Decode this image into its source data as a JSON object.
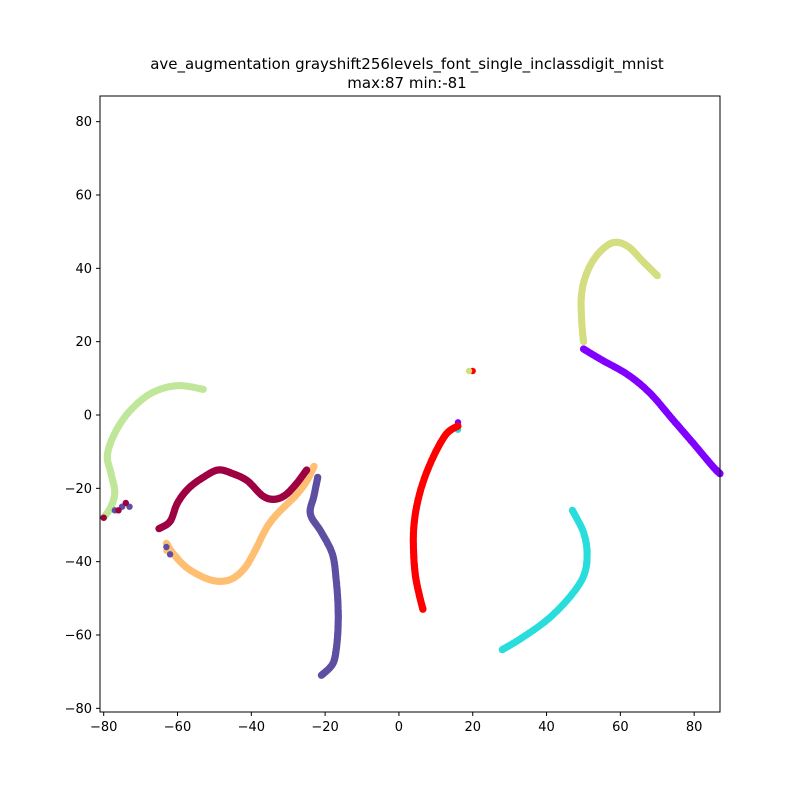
{
  "chart_data": {
    "type": "scatter",
    "title": "ave_augmentation grayshift256levels_font_single_inclassdigit_mnist",
    "subtitle": "max:87 min:-81",
    "xlabel": "",
    "ylabel": "",
    "xlim": [
      -81,
      87
    ],
    "ylim": [
      -81,
      87
    ],
    "xticks": [
      -80,
      -60,
      -40,
      -20,
      0,
      20,
      40,
      60,
      80
    ],
    "yticks": [
      -80,
      -60,
      -40,
      -20,
      0,
      20,
      40,
      60,
      80
    ],
    "grid": false,
    "legend": "none",
    "series": [
      {
        "color": "#8000ff",
        "points": [
          [
            50,
            18
          ],
          [
            55,
            15
          ],
          [
            62,
            11
          ],
          [
            68,
            6
          ],
          [
            74,
            -1
          ],
          [
            80,
            -8
          ],
          [
            85,
            -14
          ],
          [
            87,
            -16
          ]
        ],
        "extra": [
          [
            16,
            -2
          ]
        ]
      },
      {
        "color": "#2adddd",
        "points": [
          [
            28,
            -64
          ],
          [
            33,
            -61
          ],
          [
            40,
            -56
          ],
          [
            46,
            -50
          ],
          [
            50,
            -44
          ],
          [
            51,
            -38
          ],
          [
            50,
            -32
          ],
          [
            47,
            -26
          ]
        ],
        "extra": [
          [
            16,
            -4
          ]
        ]
      },
      {
        "color": "#ff0000",
        "points": [
          [
            16,
            -3
          ],
          [
            13,
            -5
          ],
          [
            10,
            -10
          ],
          [
            7,
            -17
          ],
          [
            5,
            -24
          ],
          [
            4,
            -31
          ],
          [
            4,
            -38
          ],
          [
            4.5,
            -44
          ],
          [
            5.5,
            -49
          ],
          [
            6.5,
            -53
          ]
        ],
        "extra": [
          [
            20,
            12
          ]
        ]
      },
      {
        "color": "#d4dd80",
        "points": [
          [
            50,
            20
          ],
          [
            49.5,
            26
          ],
          [
            49.5,
            33
          ],
          [
            51,
            39
          ],
          [
            54,
            44
          ],
          [
            58,
            47
          ],
          [
            62,
            46
          ],
          [
            66,
            42
          ],
          [
            70,
            38
          ]
        ],
        "extra": [
          [
            19,
            12
          ]
        ]
      },
      {
        "color": "#c0e699",
        "points": [
          [
            -53,
            7
          ],
          [
            -60,
            8
          ],
          [
            -67,
            6
          ],
          [
            -73,
            1
          ],
          [
            -77,
            -5
          ],
          [
            -79,
            -11
          ],
          [
            -78,
            -16
          ],
          [
            -77,
            -21
          ],
          [
            -78,
            -25
          ],
          [
            -80,
            -28
          ]
        ],
        "extra": []
      },
      {
        "color": "#ffbf73",
        "points": [
          [
            -63,
            -35
          ],
          [
            -61,
            -38
          ],
          [
            -57,
            -42
          ],
          [
            -51,
            -45
          ],
          [
            -46,
            -45
          ],
          [
            -42,
            -42
          ],
          [
            -39,
            -37
          ],
          [
            -36,
            -31
          ],
          [
            -33,
            -27
          ],
          [
            -28,
            -22
          ],
          [
            -25,
            -18
          ],
          [
            -23,
            -14
          ]
        ],
        "extra": [
          [
            -63,
            -37
          ],
          [
            -62,
            -38
          ]
        ]
      },
      {
        "color": "#5e4fa2",
        "points": [
          [
            -22,
            -17
          ],
          [
            -23,
            -22
          ],
          [
            -24,
            -27
          ],
          [
            -21,
            -32
          ],
          [
            -18,
            -38
          ],
          [
            -17,
            -45
          ],
          [
            -16.5,
            -52
          ],
          [
            -16.5,
            -58
          ],
          [
            -17,
            -64
          ],
          [
            -18,
            -68
          ],
          [
            -21,
            -71
          ]
        ],
        "extra": [
          [
            -75,
            -25
          ],
          [
            -73,
            -25
          ],
          [
            -77,
            -26
          ],
          [
            -63,
            -36
          ],
          [
            -62,
            -38
          ]
        ]
      },
      {
        "color": "#9e0142",
        "points": [
          [
            -65,
            -31
          ],
          [
            -62,
            -29
          ],
          [
            -60,
            -24
          ],
          [
            -57,
            -20
          ],
          [
            -53,
            -17
          ],
          [
            -49,
            -15
          ],
          [
            -45,
            -16
          ],
          [
            -41,
            -18
          ],
          [
            -37,
            -22
          ],
          [
            -34,
            -23
          ],
          [
            -31,
            -22
          ],
          [
            -28,
            -19
          ],
          [
            -25,
            -15
          ]
        ],
        "extra": [
          [
            -74,
            -24
          ],
          [
            -76,
            -26
          ],
          [
            -80,
            -28
          ]
        ]
      }
    ]
  }
}
